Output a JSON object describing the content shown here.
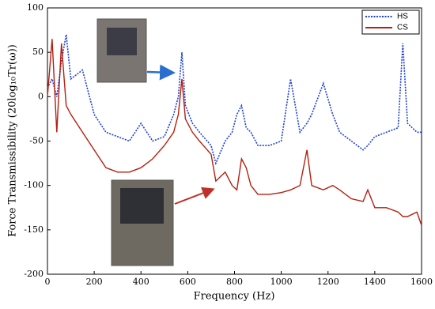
{
  "chart_data": {
    "type": "line",
    "xlabel": "Frequency (Hz)",
    "ylabel": "Force Transmissibility (20log₁₀Tr(ω))",
    "x": [
      0,
      20,
      40,
      60,
      80,
      100,
      150,
      200,
      250,
      300,
      350,
      400,
      450,
      500,
      540,
      560,
      575,
      590,
      620,
      650,
      700,
      720,
      760,
      790,
      810,
      830,
      850,
      870,
      900,
      950,
      1000,
      1040,
      1080,
      1110,
      1130,
      1180,
      1220,
      1250,
      1300,
      1350,
      1370,
      1400,
      1450,
      1500,
      1520,
      1540,
      1580,
      1600
    ],
    "series": [
      {
        "name": "HS",
        "color": "#1f3fd6",
        "dash": true,
        "values": [
          10,
          20,
          0,
          40,
          70,
          20,
          30,
          -20,
          -40,
          -45,
          -50,
          -30,
          -50,
          -45,
          -20,
          0,
          50,
          -10,
          -30,
          -40,
          -55,
          -75,
          -50,
          -40,
          -20,
          -10,
          -35,
          -40,
          -55,
          -55,
          -50,
          20,
          -40,
          -30,
          -20,
          15,
          -20,
          -40,
          -50,
          -60,
          -55,
          -45,
          -40,
          -35,
          60,
          -30,
          -40,
          -40
        ]
      },
      {
        "name": "CS",
        "color": "#b22010",
        "dash": false,
        "values": [
          0,
          65,
          -40,
          60,
          -10,
          -20,
          -40,
          -60,
          -80,
          -85,
          -85,
          -80,
          -70,
          -55,
          -40,
          -20,
          20,
          -25,
          -40,
          -50,
          -65,
          -95,
          -85,
          -100,
          -105,
          -70,
          -80,
          -100,
          -110,
          -110,
          -108,
          -105,
          -100,
          -60,
          -100,
          -105,
          -100,
          -105,
          -115,
          -118,
          -105,
          -125,
          -125,
          -130,
          -135,
          -135,
          -130,
          -145
        ]
      }
    ],
    "xlim": [
      0,
      1600
    ],
    "xticks": [
      0,
      200,
      400,
      600,
      800,
      1000,
      1200,
      1400,
      1600
    ],
    "ylim": [
      -200,
      100
    ],
    "yticks": [
      -200,
      -150,
      -100,
      -50,
      0,
      50,
      100
    ],
    "grid": false,
    "legend": "top-right"
  }
}
